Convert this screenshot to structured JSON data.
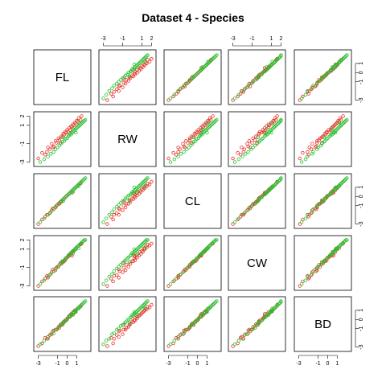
{
  "chart_data": {
    "type": "scatter",
    "title": "Dataset 4 - Species",
    "variables": [
      "FL",
      "RW",
      "CL",
      "CW",
      "BD"
    ],
    "axis_range": [
      -3.3,
      2.3
    ],
    "tick_values": [
      -3,
      -1,
      0,
      1,
      2
    ],
    "tick_labels_top": [
      "-3",
      "-1",
      "1",
      "2"
    ],
    "tick_labels_left": [
      "-3",
      "-1",
      "1",
      "2"
    ],
    "tick_labels_right": [
      "-3",
      "-1",
      "0",
      "1"
    ],
    "tick_labels_bottom": [
      "-3",
      "-1",
      "0",
      "1"
    ],
    "groups": [
      {
        "color": "#e8342b",
        "points": [
          [
            -3.0,
            -2.6,
            -3.0,
            -3.0,
            -2.9
          ],
          [
            -2.6,
            -2.0,
            -2.5,
            -2.5,
            -2.6
          ],
          [
            -2.3,
            -2.2,
            -2.2,
            -2.2,
            -2.0
          ],
          [
            -2.0,
            -1.4,
            -2.0,
            -2.1,
            -1.9
          ],
          [
            -1.8,
            -1.6,
            -1.8,
            -1.8,
            -1.7
          ],
          [
            -1.6,
            -1.0,
            -1.5,
            -1.5,
            -1.6
          ],
          [
            -1.4,
            -1.3,
            -1.4,
            -1.4,
            -1.2
          ],
          [
            -1.2,
            -0.7,
            -1.2,
            -1.3,
            -1.1
          ],
          [
            -1.1,
            -0.9,
            -1.0,
            -1.0,
            -1.1
          ],
          [
            -0.9,
            -0.4,
            -0.8,
            -0.9,
            -0.8
          ],
          [
            -0.8,
            -0.6,
            -0.8,
            -0.7,
            -0.9
          ],
          [
            -0.6,
            -0.2,
            -0.6,
            -0.6,
            -0.5
          ],
          [
            -0.5,
            -0.3,
            -0.4,
            -0.4,
            -0.6
          ],
          [
            -0.4,
            0.1,
            -0.3,
            -0.3,
            -0.3
          ],
          [
            -0.3,
            0.0,
            -0.2,
            -0.3,
            -0.2
          ],
          [
            -0.2,
            0.3,
            -0.1,
            -0.2,
            -0.1
          ],
          [
            -0.1,
            0.2,
            0.0,
            0.0,
            -0.1
          ],
          [
            0.0,
            0.5,
            0.1,
            0.1,
            0.1
          ],
          [
            0.1,
            0.3,
            0.2,
            0.2,
            0.2
          ],
          [
            0.2,
            0.7,
            0.3,
            0.3,
            0.4
          ],
          [
            0.3,
            0.5,
            0.4,
            0.4,
            0.3
          ],
          [
            0.4,
            0.9,
            0.5,
            0.5,
            0.6
          ],
          [
            0.5,
            0.8,
            0.6,
            0.7,
            0.5
          ],
          [
            0.6,
            1.1,
            0.7,
            0.7,
            0.8
          ],
          [
            0.7,
            1.0,
            0.8,
            0.8,
            0.7
          ],
          [
            0.8,
            1.3,
            0.9,
            1.0,
            1.0
          ],
          [
            0.9,
            1.2,
            1.0,
            1.1,
            0.9
          ],
          [
            1.0,
            1.5,
            1.1,
            1.2,
            1.1
          ],
          [
            1.1,
            1.4,
            1.2,
            1.3,
            1.2
          ],
          [
            1.2,
            1.8,
            1.3,
            1.4,
            1.3
          ],
          [
            1.4,
            1.6,
            1.4,
            1.5,
            1.4
          ],
          [
            1.5,
            2.0,
            1.6,
            1.6,
            1.6
          ],
          [
            -1.5,
            -1.4,
            -1.3,
            -1.2,
            -1.3
          ],
          [
            -0.7,
            -0.9,
            -0.6,
            -0.5,
            -0.6
          ],
          [
            0.5,
            0.2,
            0.4,
            0.3,
            0.6
          ],
          [
            -2.1,
            -1.9,
            -2.0,
            -1.9,
            -2.1
          ]
        ]
      },
      {
        "color": "#2bc233",
        "points": [
          [
            -2.8,
            -3.0,
            -2.8,
            -2.8,
            -2.7
          ],
          [
            -2.4,
            -2.7,
            -2.4,
            -2.4,
            -2.3
          ],
          [
            -2.0,
            -2.4,
            -2.0,
            -2.0,
            -2.1
          ],
          [
            -1.7,
            -2.1,
            -1.7,
            -1.7,
            -1.6
          ],
          [
            -1.4,
            -1.9,
            -1.4,
            -1.4,
            -1.5
          ],
          [
            -1.2,
            -1.6,
            -1.1,
            -1.1,
            -1.1
          ],
          [
            -1.0,
            -1.4,
            -0.9,
            -0.9,
            -1.0
          ],
          [
            -0.8,
            -1.2,
            -0.7,
            -0.7,
            -0.7
          ],
          [
            -0.6,
            -1.0,
            -0.5,
            -0.5,
            -0.6
          ],
          [
            -0.5,
            -0.8,
            -0.4,
            -0.3,
            -0.4
          ],
          [
            -0.3,
            -0.7,
            -0.2,
            -0.2,
            -0.3
          ],
          [
            -0.2,
            -0.5,
            -0.1,
            0.0,
            -0.1
          ],
          [
            0.0,
            -0.4,
            0.1,
            0.1,
            0.0
          ],
          [
            0.1,
            -0.2,
            0.2,
            0.3,
            0.2
          ],
          [
            0.2,
            -0.1,
            0.3,
            0.4,
            0.3
          ],
          [
            0.3,
            0.1,
            0.4,
            0.5,
            0.4
          ],
          [
            0.4,
            0.0,
            0.5,
            0.6,
            0.5
          ],
          [
            0.5,
            0.2,
            0.6,
            0.7,
            0.6
          ],
          [
            0.6,
            0.3,
            0.7,
            0.8,
            0.7
          ],
          [
            0.7,
            0.4,
            0.8,
            0.9,
            0.8
          ],
          [
            0.8,
            0.5,
            0.9,
            1.0,
            0.9
          ],
          [
            0.9,
            0.6,
            1.0,
            1.1,
            1.0
          ],
          [
            1.0,
            0.7,
            1.1,
            1.2,
            1.1
          ],
          [
            1.1,
            0.8,
            1.2,
            1.3,
            1.2
          ],
          [
            1.2,
            0.9,
            1.3,
            1.4,
            1.3
          ],
          [
            1.3,
            1.0,
            1.4,
            1.5,
            1.4
          ],
          [
            1.4,
            1.1,
            1.5,
            1.6,
            1.5
          ],
          [
            1.5,
            1.2,
            1.6,
            1.7,
            1.6
          ],
          [
            1.6,
            1.3,
            1.7,
            1.8,
            1.7
          ],
          [
            1.7,
            1.4,
            1.8,
            1.9,
            1.8
          ],
          [
            1.8,
            1.5,
            1.9,
            2.0,
            1.9
          ],
          [
            1.9,
            1.6,
            2.0,
            2.0,
            2.0
          ],
          [
            0.6,
            0.6,
            0.5,
            0.5,
            0.5
          ],
          [
            1.2,
            1.3,
            1.1,
            1.1,
            1.2
          ],
          [
            -0.4,
            -0.3,
            -0.5,
            -0.4,
            -0.4
          ],
          [
            0.9,
            0.2,
            1.0,
            1.0,
            0.8
          ]
        ]
      }
    ]
  }
}
